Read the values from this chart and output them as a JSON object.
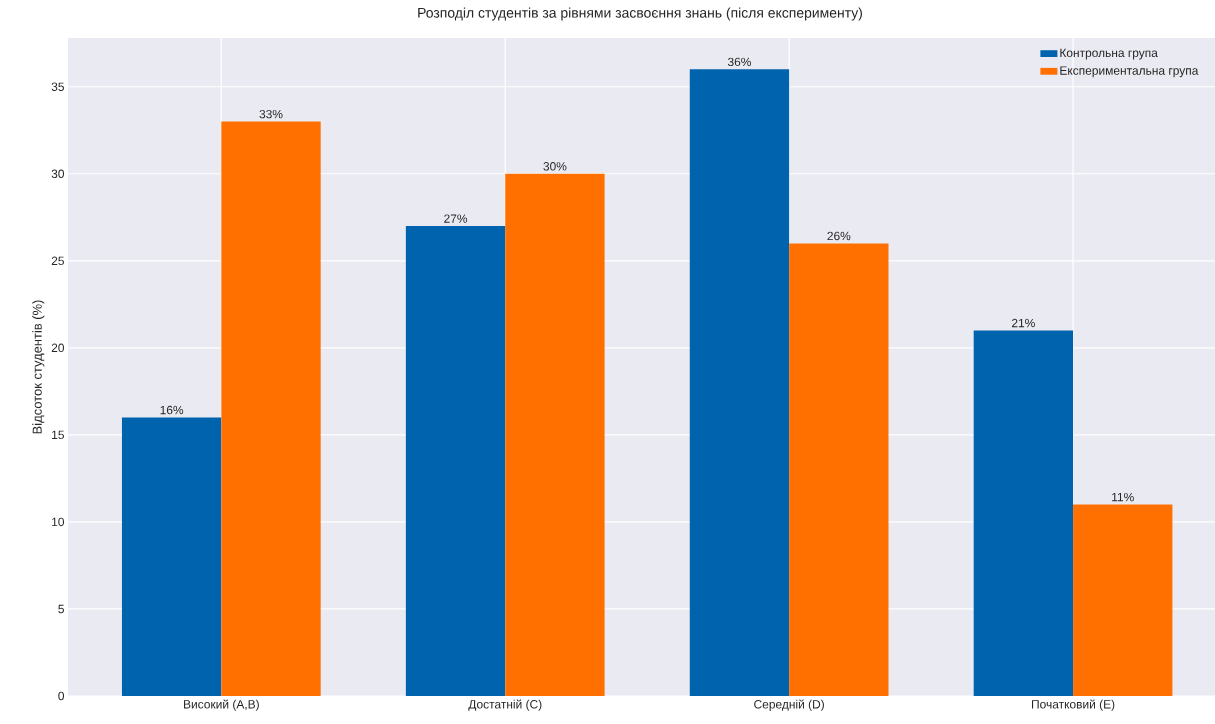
{
  "chart_data": {
    "type": "bar",
    "title": "Розподіл студентів за рівнями засвоєння знань (після експерименту)",
    "ylabel": "Відсоток студентів (%)",
    "categories": [
      "Високий (A,B)",
      "Достатній (C)",
      "Середній (D)",
      "Початковий (E)"
    ],
    "series": [
      {
        "name": "Контрольна група",
        "color": "#0063ad",
        "values": [
          16,
          27,
          36,
          21
        ],
        "value_labels": [
          "16%",
          "27%",
          "36%",
          "21%"
        ]
      },
      {
        "name": "Експериментальна група",
        "color": "#ff7000",
        "values": [
          33,
          30,
          26,
          11
        ],
        "value_labels": [
          "33%",
          "30%",
          "26%",
          "11%"
        ]
      }
    ],
    "ylim": [
      0,
      37.8
    ],
    "yticks": [
      0,
      5,
      10,
      15,
      20,
      25,
      30,
      35
    ],
    "grid": true,
    "legend": "top right"
  }
}
